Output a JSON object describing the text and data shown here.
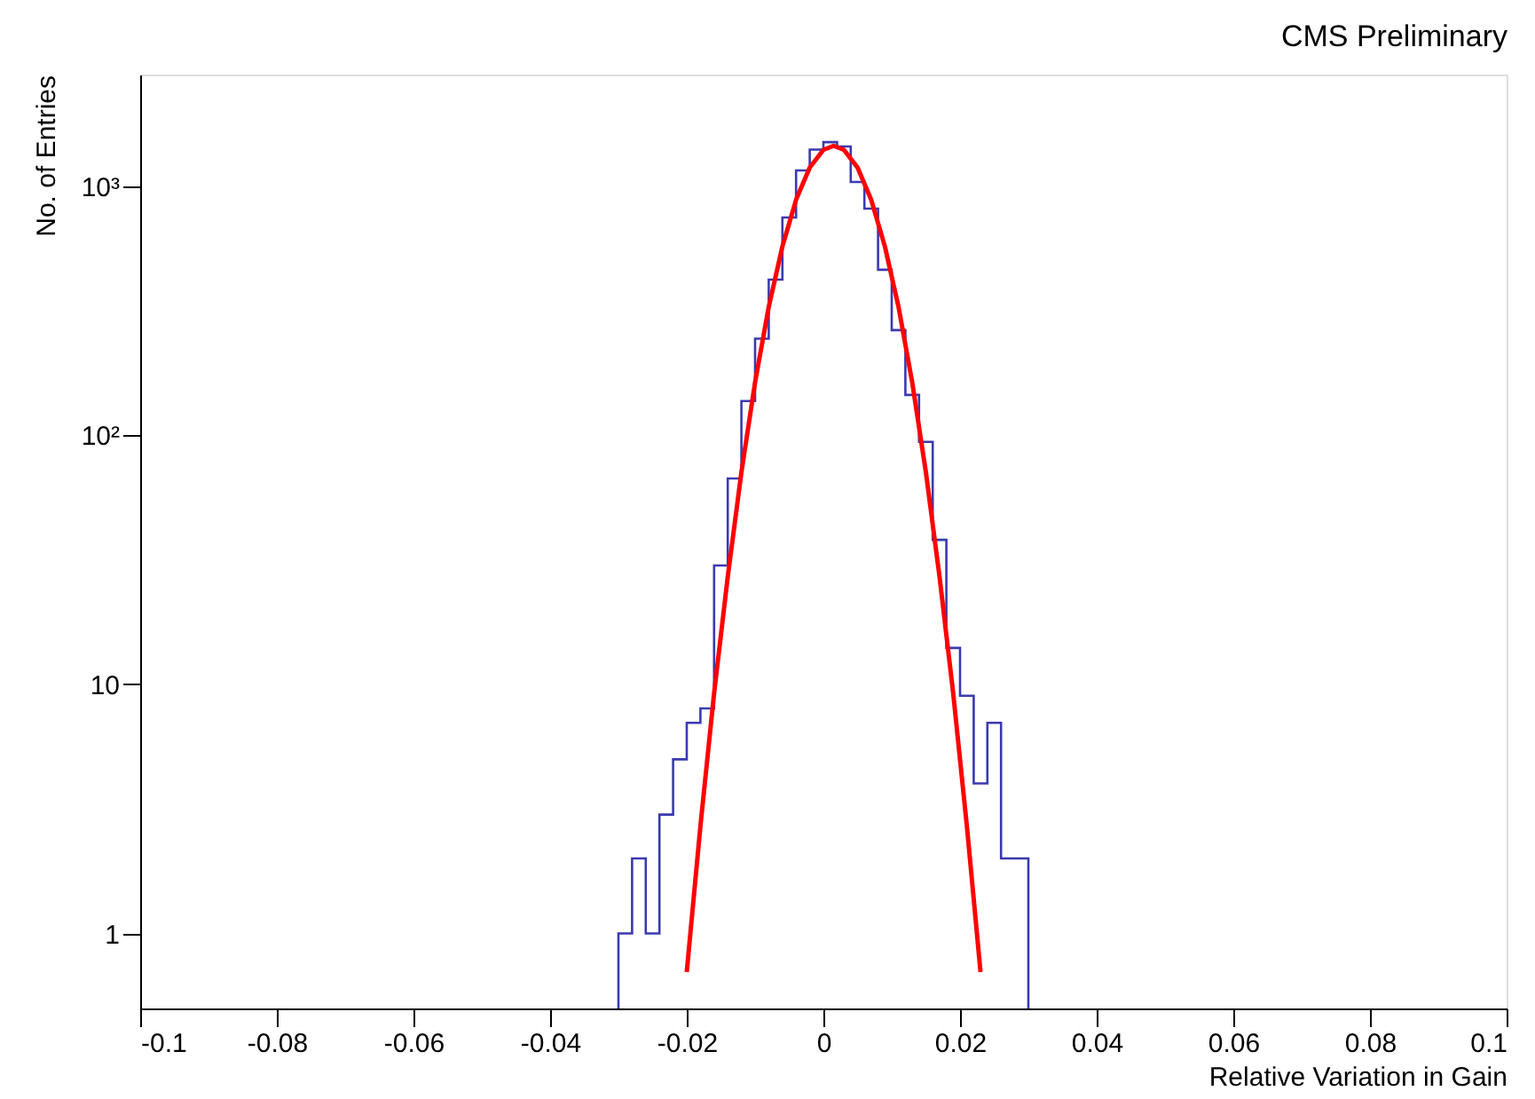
{
  "chart_data": {
    "type": "histogram",
    "title": "CMS Preliminary",
    "xlabel": "Relative Variation in Gain",
    "ylabel": "No. of Entries",
    "bins": [
      -0.03,
      -0.028,
      -0.026,
      -0.024,
      -0.022,
      -0.02,
      -0.018,
      -0.016,
      -0.014,
      -0.012,
      -0.01,
      -0.008,
      -0.006,
      -0.004,
      -0.002,
      0,
      0.002,
      0.004,
      0.006,
      0.008,
      0.01,
      0.012,
      0.014,
      0.016,
      0.018,
      0.02,
      0.022,
      0.024,
      0.026,
      0.028,
      0.03
    ],
    "values": [
      1,
      2,
      1,
      3,
      5,
      7,
      8,
      30,
      67,
      137,
      244,
      421,
      747,
      1155,
      1400,
      1500,
      1440,
      1038,
      811,
      461,
      264,
      145,
      94,
      38,
      14,
      9,
      4,
      7,
      2,
      2
    ],
    "color": "#3a3ab0",
    "series": [
      {
        "type": "line",
        "color": "#ff0000",
        "x": [
          -0.02,
          -0.018,
          -0.016,
          -0.014,
          -0.012,
          -0.01,
          -0.008,
          -0.006,
          -0.004,
          -0.002,
          0,
          0.0015,
          0.003,
          0.005,
          0.007,
          0.009,
          0.011,
          0.013,
          0.015,
          0.017,
          0.019,
          0.021,
          0.023
        ],
        "values": [
          0.7,
          2.7,
          9.2,
          27,
          71,
          163,
          327,
          572,
          880,
          1185,
          1397,
          1450,
          1397,
          1185,
          880,
          572,
          327,
          163,
          71,
          27,
          9.2,
          2.7,
          0.7
        ]
      }
    ],
    "xlim": [
      -0.1,
      0.1
    ],
    "xticks": [
      -0.1,
      -0.08,
      -0.06,
      -0.04,
      -0.02,
      0,
      0.02,
      0.04,
      0.06,
      0.08,
      0.1
    ],
    "ylim": [
      0.5,
      2800
    ],
    "yticks": [
      1,
      10,
      {
        "value": 100,
        "label": "10²"
      },
      {
        "value": 1000,
        "label": "10³"
      }
    ],
    "log": true,
    "grid": false
  }
}
